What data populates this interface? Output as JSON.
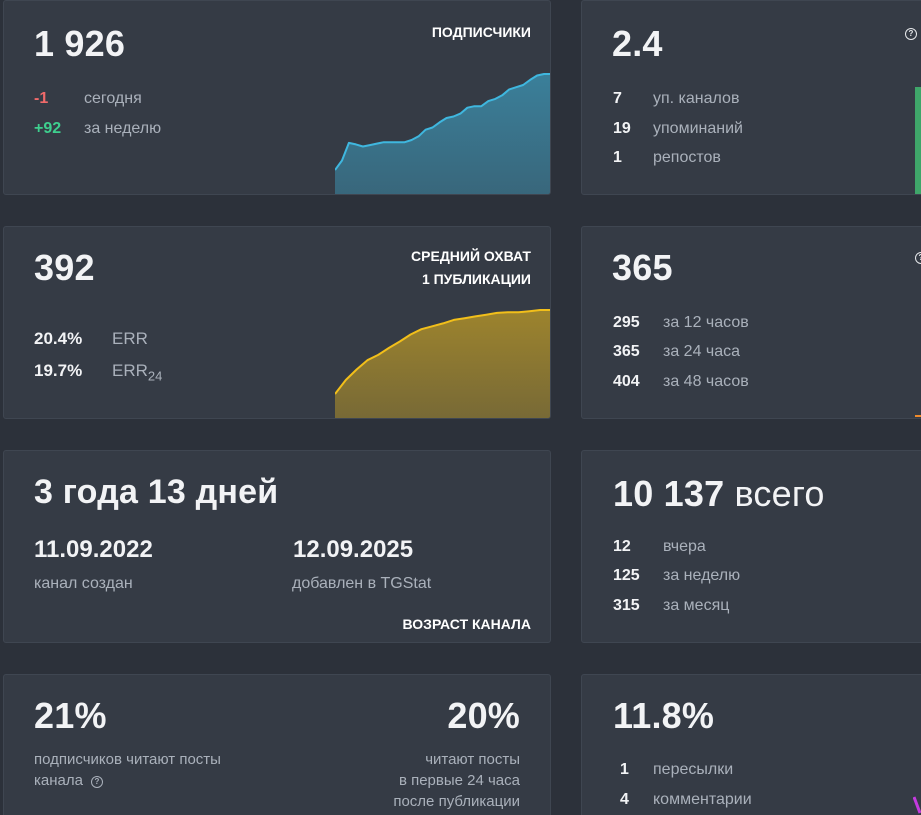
{
  "subscribers": {
    "value": "1 926",
    "title": "ПОДПИСЧИКИ",
    "stats": [
      {
        "num": "-1",
        "label": "сегодня"
      },
      {
        "num": "+92",
        "label": "за неделю"
      }
    ],
    "accent": "#3fb7df"
  },
  "citation": {
    "value": "2.4",
    "stats": [
      {
        "num": "7",
        "label": "уп. каналов"
      },
      {
        "num": "19",
        "label": "упоминаний"
      },
      {
        "num": "1",
        "label": "репостов"
      }
    ],
    "accent": "#3fa66a"
  },
  "reach": {
    "value": "392",
    "title_line1": "СРЕДНИЙ ОХВАТ",
    "title_line2": "1 ПУБЛИКАЦИИ",
    "err": {
      "num": "20.4%",
      "label": "ERR"
    },
    "err24": {
      "num": "19.7%",
      "label": "ERR",
      "sub": "24"
    },
    "accent": "#f2bf1a"
  },
  "views": {
    "value": "365",
    "stats": [
      {
        "num": "295",
        "label": "за 12 часов"
      },
      {
        "num": "365",
        "label": "за 24 часа"
      },
      {
        "num": "404",
        "label": "за 48 часов"
      }
    ],
    "accent": "#ef8a2a"
  },
  "age": {
    "value": "3 года 13 дней",
    "created_date": "11.09.2022",
    "created_label": "канал создан",
    "added_date": "12.09.2025",
    "added_label": "добавлен в TGStat",
    "title": "ВОЗРАСТ КАНАЛА"
  },
  "posts": {
    "value": "10 137",
    "value_suffix": "всего",
    "stats": [
      {
        "num": "12",
        "label": "вчера"
      },
      {
        "num": "125",
        "label": "за неделю"
      },
      {
        "num": "315",
        "label": "за месяц"
      }
    ]
  },
  "involvement": {
    "left_value": "21%",
    "left_line1": "подписчиков читают посты",
    "left_line2": "канала",
    "right_value": "20%",
    "right_line1": "читают посты",
    "right_line2": "в первые 24 часа",
    "right_line3": "после публикации"
  },
  "engagement": {
    "value": "11.8%",
    "stats": [
      {
        "num": "1",
        "label": "пересылки"
      },
      {
        "num": "4",
        "label": "комментарии"
      }
    ],
    "accent": "#c43adf"
  },
  "help_glyph": "?",
  "chart_data": [
    {
      "type": "area",
      "title": "ПОДПИСЧИКИ",
      "values": [
        1795,
        1808,
        1832,
        1830,
        1827,
        1829,
        1831,
        1833,
        1833,
        1833,
        1833,
        1836,
        1841,
        1850,
        1853,
        1860,
        1866,
        1868,
        1872,
        1880,
        1882,
        1882,
        1889,
        1892,
        1897,
        1905,
        1908,
        1911,
        1918,
        1924,
        1926,
        1926
      ]
    },
    {
      "type": "area",
      "title": "СРЕДНИЙ ОХВАТ 1 ПУБЛИКАЦИИ",
      "values": [
        248,
        272,
        290,
        306,
        315,
        327,
        338,
        350,
        359,
        364,
        369,
        375,
        378,
        381,
        384,
        387,
        388,
        388,
        390,
        392,
        392
      ]
    }
  ]
}
